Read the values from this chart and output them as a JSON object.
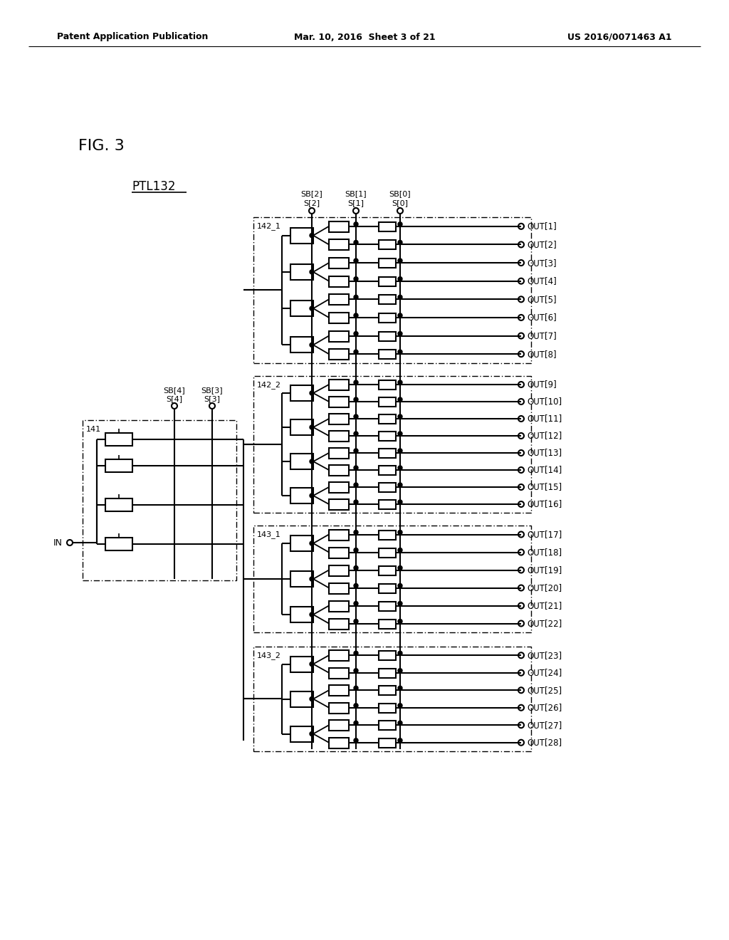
{
  "title_header_left": "Patent Application Publication",
  "title_header_center": "Mar. 10, 2016  Sheet 3 of 21",
  "title_header_right": "US 2016/0071463 A1",
  "fig_label": "FIG. 3",
  "ptl_label": "PTL132",
  "background": "#ffffff",
  "text_color": "#000000",
  "outputs": [
    "OUT[1]",
    "OUT[2]",
    "OUT[3]",
    "OUT[4]",
    "OUT[5]",
    "OUT[6]",
    "OUT[7]",
    "OUT[8]",
    "OUT[9]",
    "OUT[10]",
    "OUT[11]",
    "OUT[12]",
    "OUT[13]",
    "OUT[14]",
    "OUT[15]",
    "OUT[16]",
    "OUT[17]",
    "OUT[18]",
    "OUT[19]",
    "OUT[20]",
    "OUT[21]",
    "OUT[22]",
    "OUT[23]",
    "OUT[24]",
    "OUT[25]",
    "OUT[26]",
    "OUT[27]",
    "OUT[28]"
  ],
  "block_labels": [
    "142_1",
    "142_2",
    "143_1",
    "143_2",
    "141"
  ],
  "signal_labels_sb_top": [
    "SB[2]",
    "SB[1]",
    "SB[0]"
  ],
  "signal_labels_s_top": [
    "S[2]",
    "S[1]",
    "S[0]"
  ],
  "signal_labels_sb_mid": [
    "SB[4]",
    "SB[3]"
  ],
  "signal_labels_s_mid": [
    "S[4]",
    "S[3]"
  ],
  "in_label": "IN"
}
